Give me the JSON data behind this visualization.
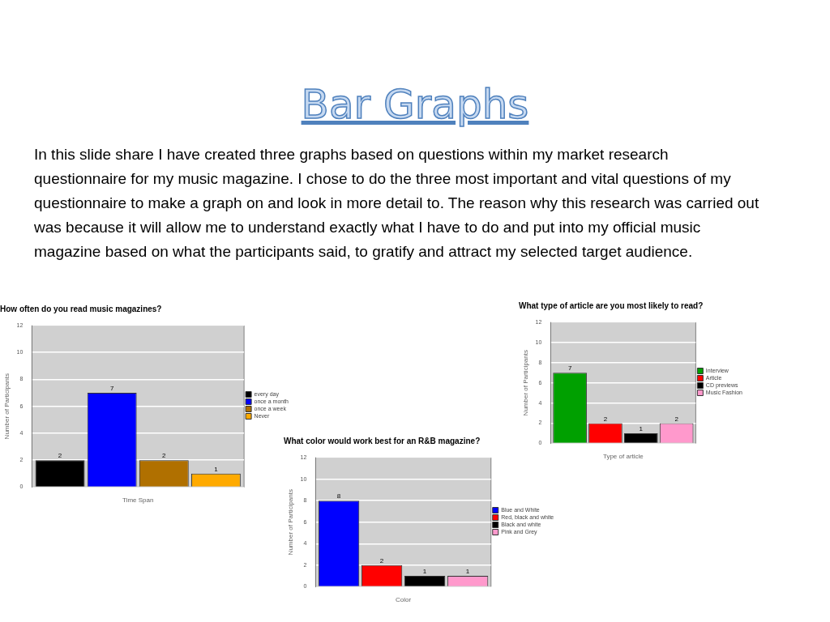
{
  "chart_data": [
    {
      "type": "bar",
      "title": "How often do you read music magazines?",
      "xlabel": "Time Span",
      "ylabel": "Number of Participants",
      "categories": [
        null
      ],
      "series": [
        {
          "name": "every day",
          "color": "#000000",
          "values": [
            2
          ]
        },
        {
          "name": "once a month",
          "color": "#0000ff",
          "values": [
            7
          ]
        },
        {
          "name": "once a week",
          "color": "#b07000",
          "values": [
            2
          ]
        },
        {
          "name": "Never",
          "color": "#ffaa00",
          "values": [
            1
          ]
        }
      ],
      "ylim": [
        0,
        12
      ],
      "yticks": [
        0,
        2,
        4,
        6,
        8,
        10,
        12
      ],
      "grid": "y",
      "legend": "right",
      "tick_labels": "y",
      "data_labels": true,
      "annotations": [
        "Bar Graphs",
        "In this slide share I have created three graphs based on questions within my market research questionnaire for my music magazine. I chose to do the three most important and vital questions of my questionnaire to make a graph on and look in more detail to. The reason why this research was carried out was because it will allow me to understand exactly what I have to do and put into my official music magazine based on what the participants said, to gratify and attract my selected target audience."
      ]
    },
    {
      "type": "bar",
      "title": "What type of article are you most likely to read?",
      "xlabel": "Type of article",
      "ylabel": "Number of Participants",
      "categories": [
        null
      ],
      "series": [
        {
          "name": "Interview",
          "color": "#00a000",
          "values": [
            7
          ]
        },
        {
          "name": "Article",
          "color": "#ff0000",
          "values": [
            2
          ]
        },
        {
          "name": "CD previews",
          "color": "#000000",
          "values": [
            1
          ]
        },
        {
          "name": "Music Fashion",
          "color": "#ff99cc",
          "values": [
            2
          ]
        }
      ],
      "ylim": [
        0,
        12
      ],
      "yticks": [
        0,
        2,
        4,
        6,
        8,
        10,
        12
      ],
      "grid": "y",
      "legend": "right",
      "tick_labels": "y",
      "data_labels": true
    },
    {
      "type": "bar",
      "title": "What color would work best for an R&B magazine?",
      "xlabel": "Color",
      "ylabel": "Number of Participants",
      "categories": [
        null
      ],
      "series": [
        {
          "name": "Blue and White",
          "color": "#0000ff",
          "values": [
            8
          ]
        },
        {
          "name": "Red, black and white",
          "color": "#ff0000",
          "values": [
            2
          ]
        },
        {
          "name": "Black and white",
          "color": "#000000",
          "values": [
            1
          ]
        },
        {
          "name": "Pink and Grey",
          "color": "#ff99cc",
          "values": [
            1
          ]
        }
      ],
      "ylim": [
        0,
        12
      ],
      "yticks": [
        0,
        2,
        4,
        6,
        8,
        10,
        12
      ],
      "grid": "y",
      "legend": "right",
      "tick_labels": "y",
      "data_labels": true
    }
  ]
}
